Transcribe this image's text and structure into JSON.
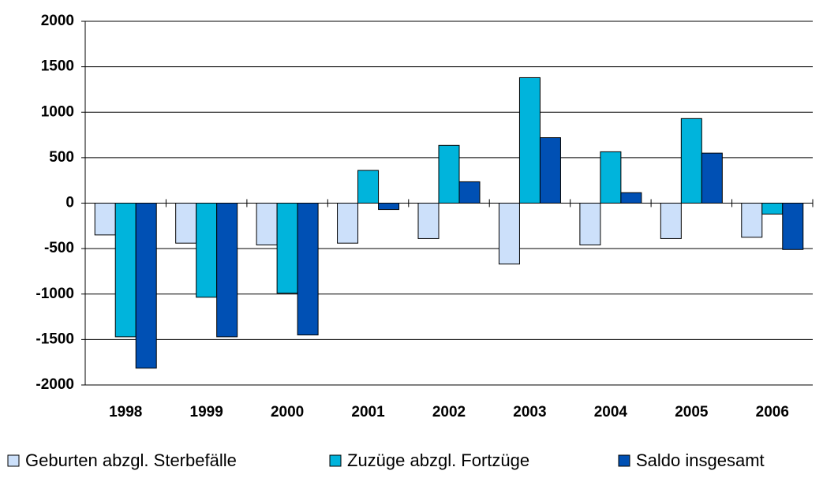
{
  "chart_data": {
    "type": "bar",
    "categories": [
      "1998",
      "1999",
      "2000",
      "2001",
      "2002",
      "2003",
      "2004",
      "2005",
      "2006"
    ],
    "series": [
      {
        "name": "Geburten abzgl. Sterbefälle",
        "color": "#cce0fa",
        "values": [
          -350,
          -440,
          -460,
          -440,
          -390,
          -670,
          -460,
          -390,
          -375
        ]
      },
      {
        "name": "Zuzüge abzgl. Fortzüge",
        "color": "#00b4dc",
        "values": [
          -1470,
          -1035,
          -990,
          360,
          635,
          1380,
          565,
          930,
          -120
        ]
      },
      {
        "name": "Saldo insgesamt",
        "color": "#0050b4",
        "values": [
          -1815,
          -1470,
          -1450,
          -70,
          235,
          720,
          115,
          550,
          -510
        ]
      }
    ],
    "ylim": [
      -2000,
      2000
    ],
    "yticks": [
      -2000,
      -1500,
      -1000,
      -500,
      0,
      500,
      1000,
      1500,
      2000
    ],
    "grid": true,
    "legend": "bottom"
  }
}
